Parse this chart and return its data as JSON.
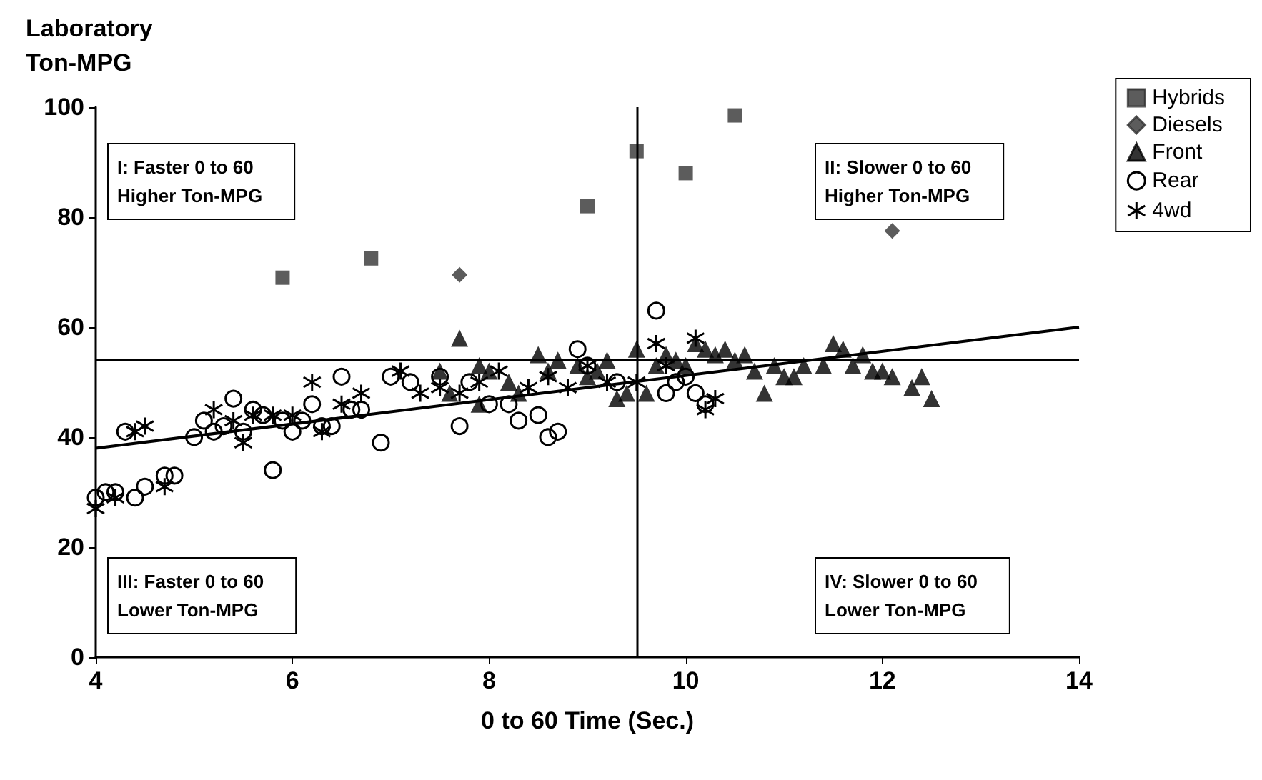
{
  "chart_data": {
    "type": "scatter",
    "xlabel": "0 to 60 Time (Sec.)",
    "ylabel": "Laboratory\nTon-MPG",
    "xlim": [
      4,
      14
    ],
    "xticks": [
      4,
      6,
      8,
      10,
      12,
      14
    ],
    "ylim": [
      0,
      100
    ],
    "yticks": [
      0,
      20,
      40,
      60,
      80,
      100
    ],
    "grid": false,
    "legend": "top right",
    "annotations": [
      "I: Faster 0 to 60\nHigher Ton-MPG",
      "II: Slower 0 to 60\nHigher Ton-MPG",
      "III: Faster 0 to 60\nLower Ton-MPG",
      "IV: Slower 0 to 60\nLower Ton-MPG"
    ],
    "ref_lines": [
      {
        "axis": "y",
        "value": 54,
        "label": null,
        "color": "#000000"
      },
      {
        "axis": "x",
        "value": 9.5,
        "label": null,
        "color": "#000000"
      }
    ],
    "series": [
      {
        "name": "Hybrids",
        "color": "#333333",
        "marker": "square",
        "x": [
          5.9,
          6.8,
          9.0,
          9.5,
          10.0,
          10.5
        ],
        "values": [
          69,
          72.5,
          82,
          92,
          88,
          98.5
        ]
      },
      {
        "name": "Diesels",
        "color": "#333333",
        "marker": "diamond",
        "x": [
          7.7,
          12.1
        ],
        "values": [
          69.5,
          77.5
        ]
      },
      {
        "name": "Front",
        "color": "#000000",
        "marker": "triangle",
        "x": [
          7.7,
          7.5,
          7.6,
          7.9,
          8.0,
          8.2,
          8.5,
          8.6,
          8.7,
          8.9,
          9.0,
          9.1,
          9.2,
          9.3,
          9.4,
          9.5,
          9.6,
          9.7,
          9.8,
          9.9,
          10.0,
          10.1,
          10.2,
          10.3,
          10.4,
          10.5,
          10.6,
          10.7,
          10.8,
          10.9,
          11.0,
          11.1,
          11.2,
          11.4,
          11.5,
          11.6,
          11.7,
          11.8,
          11.9,
          12.0,
          12.1,
          12.3,
          12.4,
          12.5,
          8.3,
          7.9
        ],
        "values": [
          58,
          52,
          48,
          53,
          52,
          50,
          55,
          52,
          54,
          53,
          51,
          52,
          54,
          47,
          48,
          56,
          48,
          53,
          55,
          54,
          53,
          57,
          56,
          55,
          56,
          54,
          55,
          52,
          48,
          53,
          51,
          51,
          53,
          53,
          57,
          56,
          53,
          55,
          52,
          52,
          51,
          49,
          51,
          47,
          48,
          46
        ]
      },
      {
        "name": "Rear",
        "color": "#000000",
        "marker": "circle",
        "x": [
          4.0,
          4.1,
          4.2,
          4.3,
          4.4,
          4.5,
          4.7,
          4.8,
          5.0,
          5.1,
          5.2,
          5.3,
          5.4,
          5.5,
          5.6,
          5.7,
          5.8,
          5.9,
          6.0,
          6.1,
          6.2,
          6.3,
          6.4,
          6.5,
          6.6,
          6.7,
          6.9,
          7.0,
          7.2,
          7.5,
          7.7,
          7.8,
          8.0,
          8.2,
          8.3,
          8.5,
          8.6,
          8.7,
          8.9,
          9.0,
          9.3,
          9.7,
          9.8,
          10.0,
          10.1,
          10.2,
          9.9
        ],
        "values": [
          29,
          30,
          30,
          41,
          29,
          31,
          33,
          33,
          40,
          43,
          41,
          42,
          47,
          41,
          45,
          44,
          34,
          43,
          41,
          43,
          46,
          42,
          42,
          51,
          45,
          45,
          39,
          51,
          50,
          51,
          42,
          50,
          46,
          46,
          43,
          44,
          40,
          41,
          56,
          53,
          50,
          63,
          48,
          51,
          48,
          46,
          50
        ]
      },
      {
        "name": "4wd",
        "color": "#000000",
        "marker": "cross",
        "x": [
          4.0,
          4.2,
          4.4,
          4.5,
          4.7,
          5.2,
          5.4,
          5.5,
          5.6,
          5.8,
          6.0,
          6.2,
          6.3,
          6.5,
          6.7,
          7.1,
          7.3,
          7.5,
          7.7,
          7.9,
          8.1,
          8.4,
          8.6,
          8.8,
          9.0,
          9.2,
          9.5,
          9.7,
          9.8,
          10.1,
          10.2,
          10.3
        ],
        "values": [
          27,
          29,
          41,
          42,
          31,
          45,
          43,
          39,
          44,
          44,
          44,
          50,
          41,
          46,
          48,
          52,
          48,
          49,
          48,
          50,
          52,
          49,
          51,
          49,
          53,
          50,
          50,
          57,
          53,
          58,
          45,
          47
        ]
      },
      {
        "type": "line",
        "color": "#000000",
        "marker": "none",
        "line_style": "solid",
        "x": [
          4,
          14
        ],
        "values": [
          38,
          60
        ]
      }
    ]
  }
}
